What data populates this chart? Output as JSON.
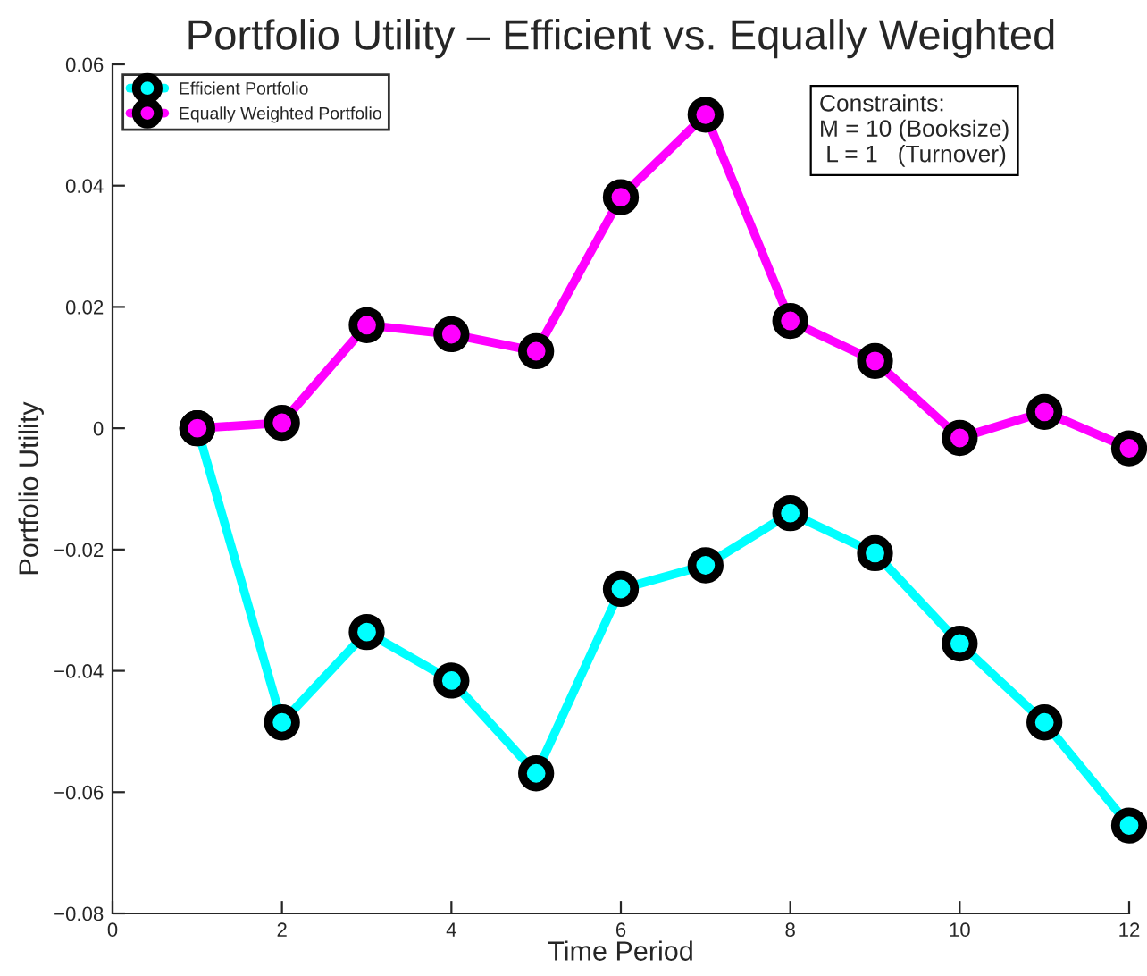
{
  "chart_data": {
    "type": "line",
    "title": "Portfolio Utility – Efficient vs. Equally Weighted",
    "xlabel": "Time Period",
    "ylabel": "Portfolio Utility",
    "x": [
      1,
      2,
      3,
      4,
      5,
      6,
      7,
      8,
      9,
      10,
      11,
      12
    ],
    "series": [
      {
        "name": "Efficient Portfolio",
        "color": "#00ffff",
        "values": [
          0,
          -0.0485,
          -0.0336,
          -0.0416,
          -0.0569,
          -0.0265,
          -0.0226,
          -0.014,
          -0.0206,
          -0.0355,
          -0.0485,
          -0.0655
        ]
      },
      {
        "name": "Equally Weighted Portfolio",
        "color": "#ff00ff",
        "values": [
          0,
          0.0009,
          0.017,
          0.0155,
          0.0127,
          0.0381,
          0.0517,
          0.0177,
          0.0111,
          -0.0016,
          0.0027,
          -0.0033
        ]
      }
    ],
    "annotations": [
      "Constraints:\nM = 10 (Booksize)\n L = 1   (Turnover)"
    ],
    "xlim": [
      0,
      12
    ],
    "xticks": [
      0,
      2,
      4,
      6,
      8,
      10,
      12
    ],
    "ylim": [
      -0.08,
      0.06
    ],
    "yticks": [
      -0.08,
      -0.06,
      -0.04,
      -0.02,
      0,
      0.02,
      0.04,
      0.06
    ],
    "marker": "circle",
    "line_style": "solid",
    "legend": "top left",
    "grid": false
  }
}
